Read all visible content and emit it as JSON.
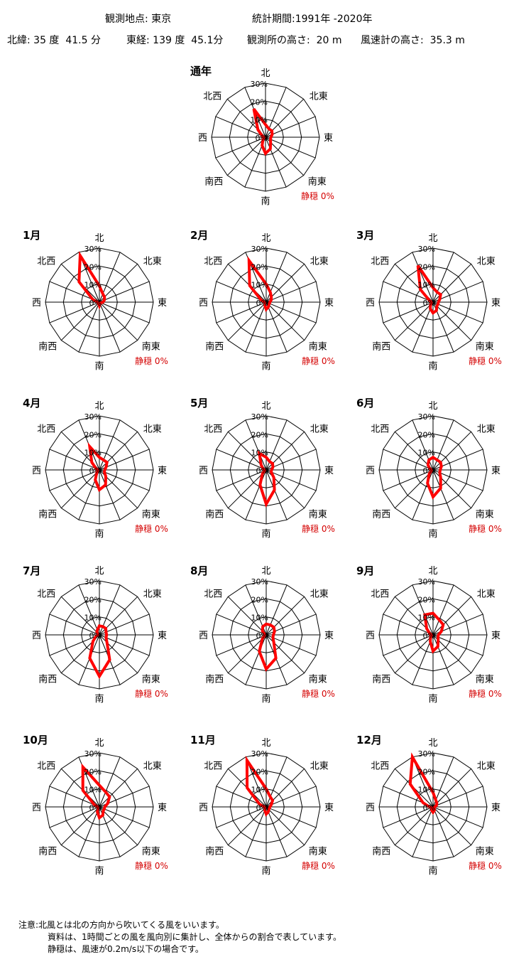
{
  "header": {
    "station_label": "観測地点:",
    "station": "東京",
    "period_label": "統計期間:",
    "period": "1991年 -2020年",
    "latitude_label": "北緯:",
    "latitude": "35 度  41.5 分",
    "longitude_label": "東経:",
    "longitude": "139 度  45.1分",
    "altitude_label": "観測所の高さ:",
    "altitude": "20 m",
    "anemometer_label": "風速計の高さ:",
    "anemometer": "35.3 m"
  },
  "notes": {
    "label": "注意:",
    "lines": [
      "北風とは北の方向から吹いてくる風をいいます。",
      "資料は、1時間ごとの風を風向別に集計し、全体からの割合で表しています。",
      "静穏は、風速が0.2m/s以下の場合です。"
    ]
  },
  "style": {
    "series_color": "#ff0000",
    "calm_color": "#d40000",
    "grid_color": "#000000"
  },
  "chart_data": [
    {
      "type": "radar",
      "title": "通年",
      "directions": [
        "北",
        "北北東",
        "北東",
        "東北東",
        "東",
        "東南東",
        "南東",
        "南南東",
        "南",
        "南南西",
        "南西",
        "西南西",
        "西",
        "西北西",
        "北西",
        "北北西"
      ],
      "direction_labels": [
        "北",
        "北東",
        "東",
        "南東",
        "南",
        "南西",
        "西",
        "北西"
      ],
      "rlim": [
        0,
        30
      ],
      "ticks": [
        "0%",
        "10%",
        "20%",
        "30%"
      ],
      "values": [
        7,
        5,
        5,
        4,
        3,
        3,
        4,
        7,
        9,
        5,
        2,
        1,
        1,
        2,
        6,
        17
      ],
      "calm_label": "静穏",
      "calm": "0%"
    },
    {
      "type": "radar",
      "title": "1月",
      "directions": [
        "北",
        "北北東",
        "北東",
        "東北東",
        "東",
        "東南東",
        "南東",
        "南南東",
        "南",
        "南南西",
        "南西",
        "西南西",
        "西",
        "西北西",
        "北西",
        "北北西"
      ],
      "direction_labels": [
        "北",
        "北東",
        "東",
        "南東",
        "南",
        "南西",
        "西",
        "北西"
      ],
      "rlim": [
        0,
        30
      ],
      "ticks": [
        "0%",
        "10%",
        "20%",
        "30%"
      ],
      "values": [
        9,
        5,
        4,
        3,
        2,
        1,
        1,
        1,
        2,
        1,
        1,
        1,
        1,
        4,
        16,
        28
      ],
      "calm_label": "静穏",
      "calm": "0%"
    },
    {
      "type": "radar",
      "title": "2月",
      "directions": [
        "北",
        "北北東",
        "北東",
        "東北東",
        "東",
        "東南東",
        "南東",
        "南南東",
        "南",
        "南南西",
        "南西",
        "西南西",
        "西",
        "西北西",
        "北西",
        "北北西"
      ],
      "direction_labels": [
        "北",
        "北東",
        "東",
        "南東",
        "南",
        "南西",
        "西",
        "北西"
      ],
      "rlim": [
        0,
        30
      ],
      "ticks": [
        "0%",
        "10%",
        "20%",
        "30%"
      ],
      "values": [
        10,
        6,
        4,
        3,
        2,
        2,
        2,
        3,
        4,
        2,
        1,
        1,
        1,
        3,
        13,
        25
      ],
      "calm_label": "静穏",
      "calm": "0%"
    },
    {
      "type": "radar",
      "title": "3月",
      "directions": [
        "北",
        "北北東",
        "北東",
        "東北東",
        "東",
        "東南東",
        "南東",
        "南南東",
        "南",
        "南南西",
        "南西",
        "西南西",
        "西",
        "西北西",
        "北西",
        "北北西"
      ],
      "direction_labels": [
        "北",
        "北東",
        "東",
        "南東",
        "南",
        "南西",
        "西",
        "北西"
      ],
      "rlim": [
        0,
        30
      ],
      "ticks": [
        "0%",
        "10%",
        "20%",
        "30%"
      ],
      "values": [
        8,
        6,
        6,
        4,
        3,
        3,
        3,
        5,
        6,
        4,
        2,
        1,
        1,
        2,
        10,
        22
      ],
      "calm_label": "静穏",
      "calm": "0%"
    },
    {
      "type": "radar",
      "title": "4月",
      "directions": [
        "北",
        "北北東",
        "北東",
        "東北東",
        "東",
        "東南東",
        "南東",
        "南南東",
        "南",
        "南南西",
        "南西",
        "西南西",
        "西",
        "西北西",
        "北西",
        "北北西"
      ],
      "direction_labels": [
        "北",
        "北東",
        "東",
        "南東",
        "南",
        "南西",
        "西",
        "北西"
      ],
      "rlim": [
        0,
        30
      ],
      "ticks": [
        "0%",
        "10%",
        "20%",
        "30%"
      ],
      "values": [
        7,
        6,
        6,
        4,
        3,
        3,
        5,
        9,
        11,
        6,
        2,
        1,
        1,
        2,
        6,
        14
      ],
      "calm_label": "静穏",
      "calm": "0%"
    },
    {
      "type": "radar",
      "title": "5月",
      "directions": [
        "北",
        "北北東",
        "北東",
        "東北東",
        "東",
        "東南東",
        "南東",
        "南南東",
        "南",
        "南南西",
        "南西",
        "西南西",
        "西",
        "西北西",
        "北西",
        "北北西"
      ],
      "direction_labels": [
        "北",
        "北東",
        "東",
        "南東",
        "南",
        "南西",
        "西",
        "北西"
      ],
      "rlim": [
        0,
        30
      ],
      "ticks": [
        "0%",
        "10%",
        "20%",
        "30%"
      ],
      "values": [
        7,
        5,
        5,
        4,
        3,
        3,
        6,
        12,
        19,
        9,
        3,
        1,
        1,
        2,
        4,
        10
      ],
      "calm_label": "静穏",
      "calm": "0%"
    },
    {
      "type": "radar",
      "title": "6月",
      "directions": [
        "北",
        "北北東",
        "北東",
        "東北東",
        "東",
        "東南東",
        "南東",
        "南南東",
        "南",
        "南南西",
        "南西",
        "西南西",
        "西",
        "西北西",
        "北西",
        "北北西"
      ],
      "direction_labels": [
        "北",
        "北東",
        "東",
        "南東",
        "南",
        "南西",
        "西",
        "北西"
      ],
      "rlim": [
        0,
        30
      ],
      "ticks": [
        "0%",
        "10%",
        "20%",
        "30%"
      ],
      "values": [
        7,
        6,
        6,
        5,
        4,
        4,
        6,
        11,
        15,
        8,
        3,
        1,
        1,
        2,
        4,
        6
      ],
      "calm_label": "静穏",
      "calm": "0%"
    },
    {
      "type": "radar",
      "title": "7月",
      "directions": [
        "北",
        "北北東",
        "北東",
        "東北東",
        "東",
        "東南東",
        "南東",
        "南南東",
        "南",
        "南南西",
        "南西",
        "西南西",
        "西",
        "西北西",
        "北西",
        "北北西"
      ],
      "direction_labels": [
        "北",
        "北東",
        "東",
        "南東",
        "南",
        "南西",
        "西",
        "北西"
      ],
      "rlim": [
        0,
        30
      ],
      "ticks": [
        "0%",
        "10%",
        "20%",
        "30%"
      ],
      "values": [
        5,
        5,
        5,
        4,
        4,
        4,
        6,
        15,
        23,
        14,
        5,
        2,
        1,
        1,
        2,
        3
      ],
      "calm_label": "静穏",
      "calm": "0%"
    },
    {
      "type": "radar",
      "title": "8月",
      "directions": [
        "北",
        "北北東",
        "北東",
        "東北東",
        "東",
        "東南東",
        "南東",
        "南南東",
        "南",
        "南南西",
        "南西",
        "西南西",
        "西",
        "西北西",
        "北西",
        "北北西"
      ],
      "direction_labels": [
        "北",
        "北東",
        "東",
        "南東",
        "南",
        "南西",
        "西",
        "北西"
      ],
      "rlim": [
        0,
        30
      ],
      "ticks": [
        "0%",
        "10%",
        "20%",
        "30%"
      ],
      "values": [
        6,
        6,
        6,
        5,
        4,
        4,
        6,
        14,
        19,
        10,
        3,
        1,
        1,
        1,
        3,
        5
      ],
      "calm_label": "静穏",
      "calm": "0%"
    },
    {
      "type": "radar",
      "title": "9月",
      "directions": [
        "北",
        "北北東",
        "北東",
        "東北東",
        "東",
        "東南東",
        "南東",
        "南南東",
        "南",
        "南南西",
        "南西",
        "西南西",
        "西",
        "西北西",
        "北西",
        "北北西"
      ],
      "direction_labels": [
        "北",
        "北東",
        "東",
        "南東",
        "南",
        "南西",
        "西",
        "北西"
      ],
      "rlim": [
        0,
        30
      ],
      "ticks": [
        "0%",
        "10%",
        "20%",
        "30%"
      ],
      "values": [
        12,
        9,
        8,
        5,
        3,
        3,
        4,
        7,
        9,
        4,
        2,
        1,
        1,
        2,
        5,
        12
      ],
      "calm_label": "静穏",
      "calm": "0%"
    },
    {
      "type": "radar",
      "title": "10月",
      "directions": [
        "北",
        "北北東",
        "北東",
        "東北東",
        "東",
        "東南東",
        "南東",
        "南南東",
        "南",
        "南南西",
        "南西",
        "西南西",
        "西",
        "西北西",
        "北西",
        "北北西"
      ],
      "direction_labels": [
        "北",
        "北東",
        "東",
        "南東",
        "南",
        "南西",
        "西",
        "北西"
      ],
      "rlim": [
        0,
        30
      ],
      "ticks": [
        "0%",
        "10%",
        "20%",
        "30%"
      ],
      "values": [
        12,
        9,
        8,
        5,
        3,
        3,
        3,
        5,
        6,
        3,
        1,
        1,
        1,
        3,
        13,
        24
      ],
      "calm_label": "静穏",
      "calm": "0%"
    },
    {
      "type": "radar",
      "title": "11月",
      "directions": [
        "北",
        "北北東",
        "北東",
        "東北東",
        "東",
        "東南東",
        "南東",
        "南南東",
        "南",
        "南南西",
        "南西",
        "西南西",
        "西",
        "西北西",
        "北西",
        "北北西"
      ],
      "direction_labels": [
        "北",
        "北東",
        "東",
        "南東",
        "南",
        "南西",
        "西",
        "北西"
      ],
      "rlim": [
        0,
        30
      ],
      "ticks": [
        "0%",
        "10%",
        "20%",
        "30%"
      ],
      "values": [
        10,
        6,
        5,
        3,
        2,
        2,
        2,
        3,
        4,
        2,
        1,
        1,
        1,
        4,
        15,
        28
      ],
      "calm_label": "静穏",
      "calm": "0%"
    },
    {
      "type": "radar",
      "title": "12月",
      "directions": [
        "北",
        "北北東",
        "北東",
        "東北東",
        "東",
        "東南東",
        "南東",
        "南南東",
        "南",
        "南南西",
        "南西",
        "西南西",
        "西",
        "西北西",
        "北西",
        "北北西"
      ],
      "direction_labels": [
        "北",
        "北東",
        "東",
        "南東",
        "南",
        "南西",
        "西",
        "北西"
      ],
      "rlim": [
        0,
        30
      ],
      "ticks": [
        "0%",
        "10%",
        "20%",
        "30%"
      ],
      "values": [
        8,
        4,
        3,
        2,
        1,
        1,
        1,
        2,
        3,
        2,
        1,
        1,
        2,
        6,
        18,
        30
      ],
      "calm_label": "静穏",
      "calm": "0%"
    }
  ]
}
